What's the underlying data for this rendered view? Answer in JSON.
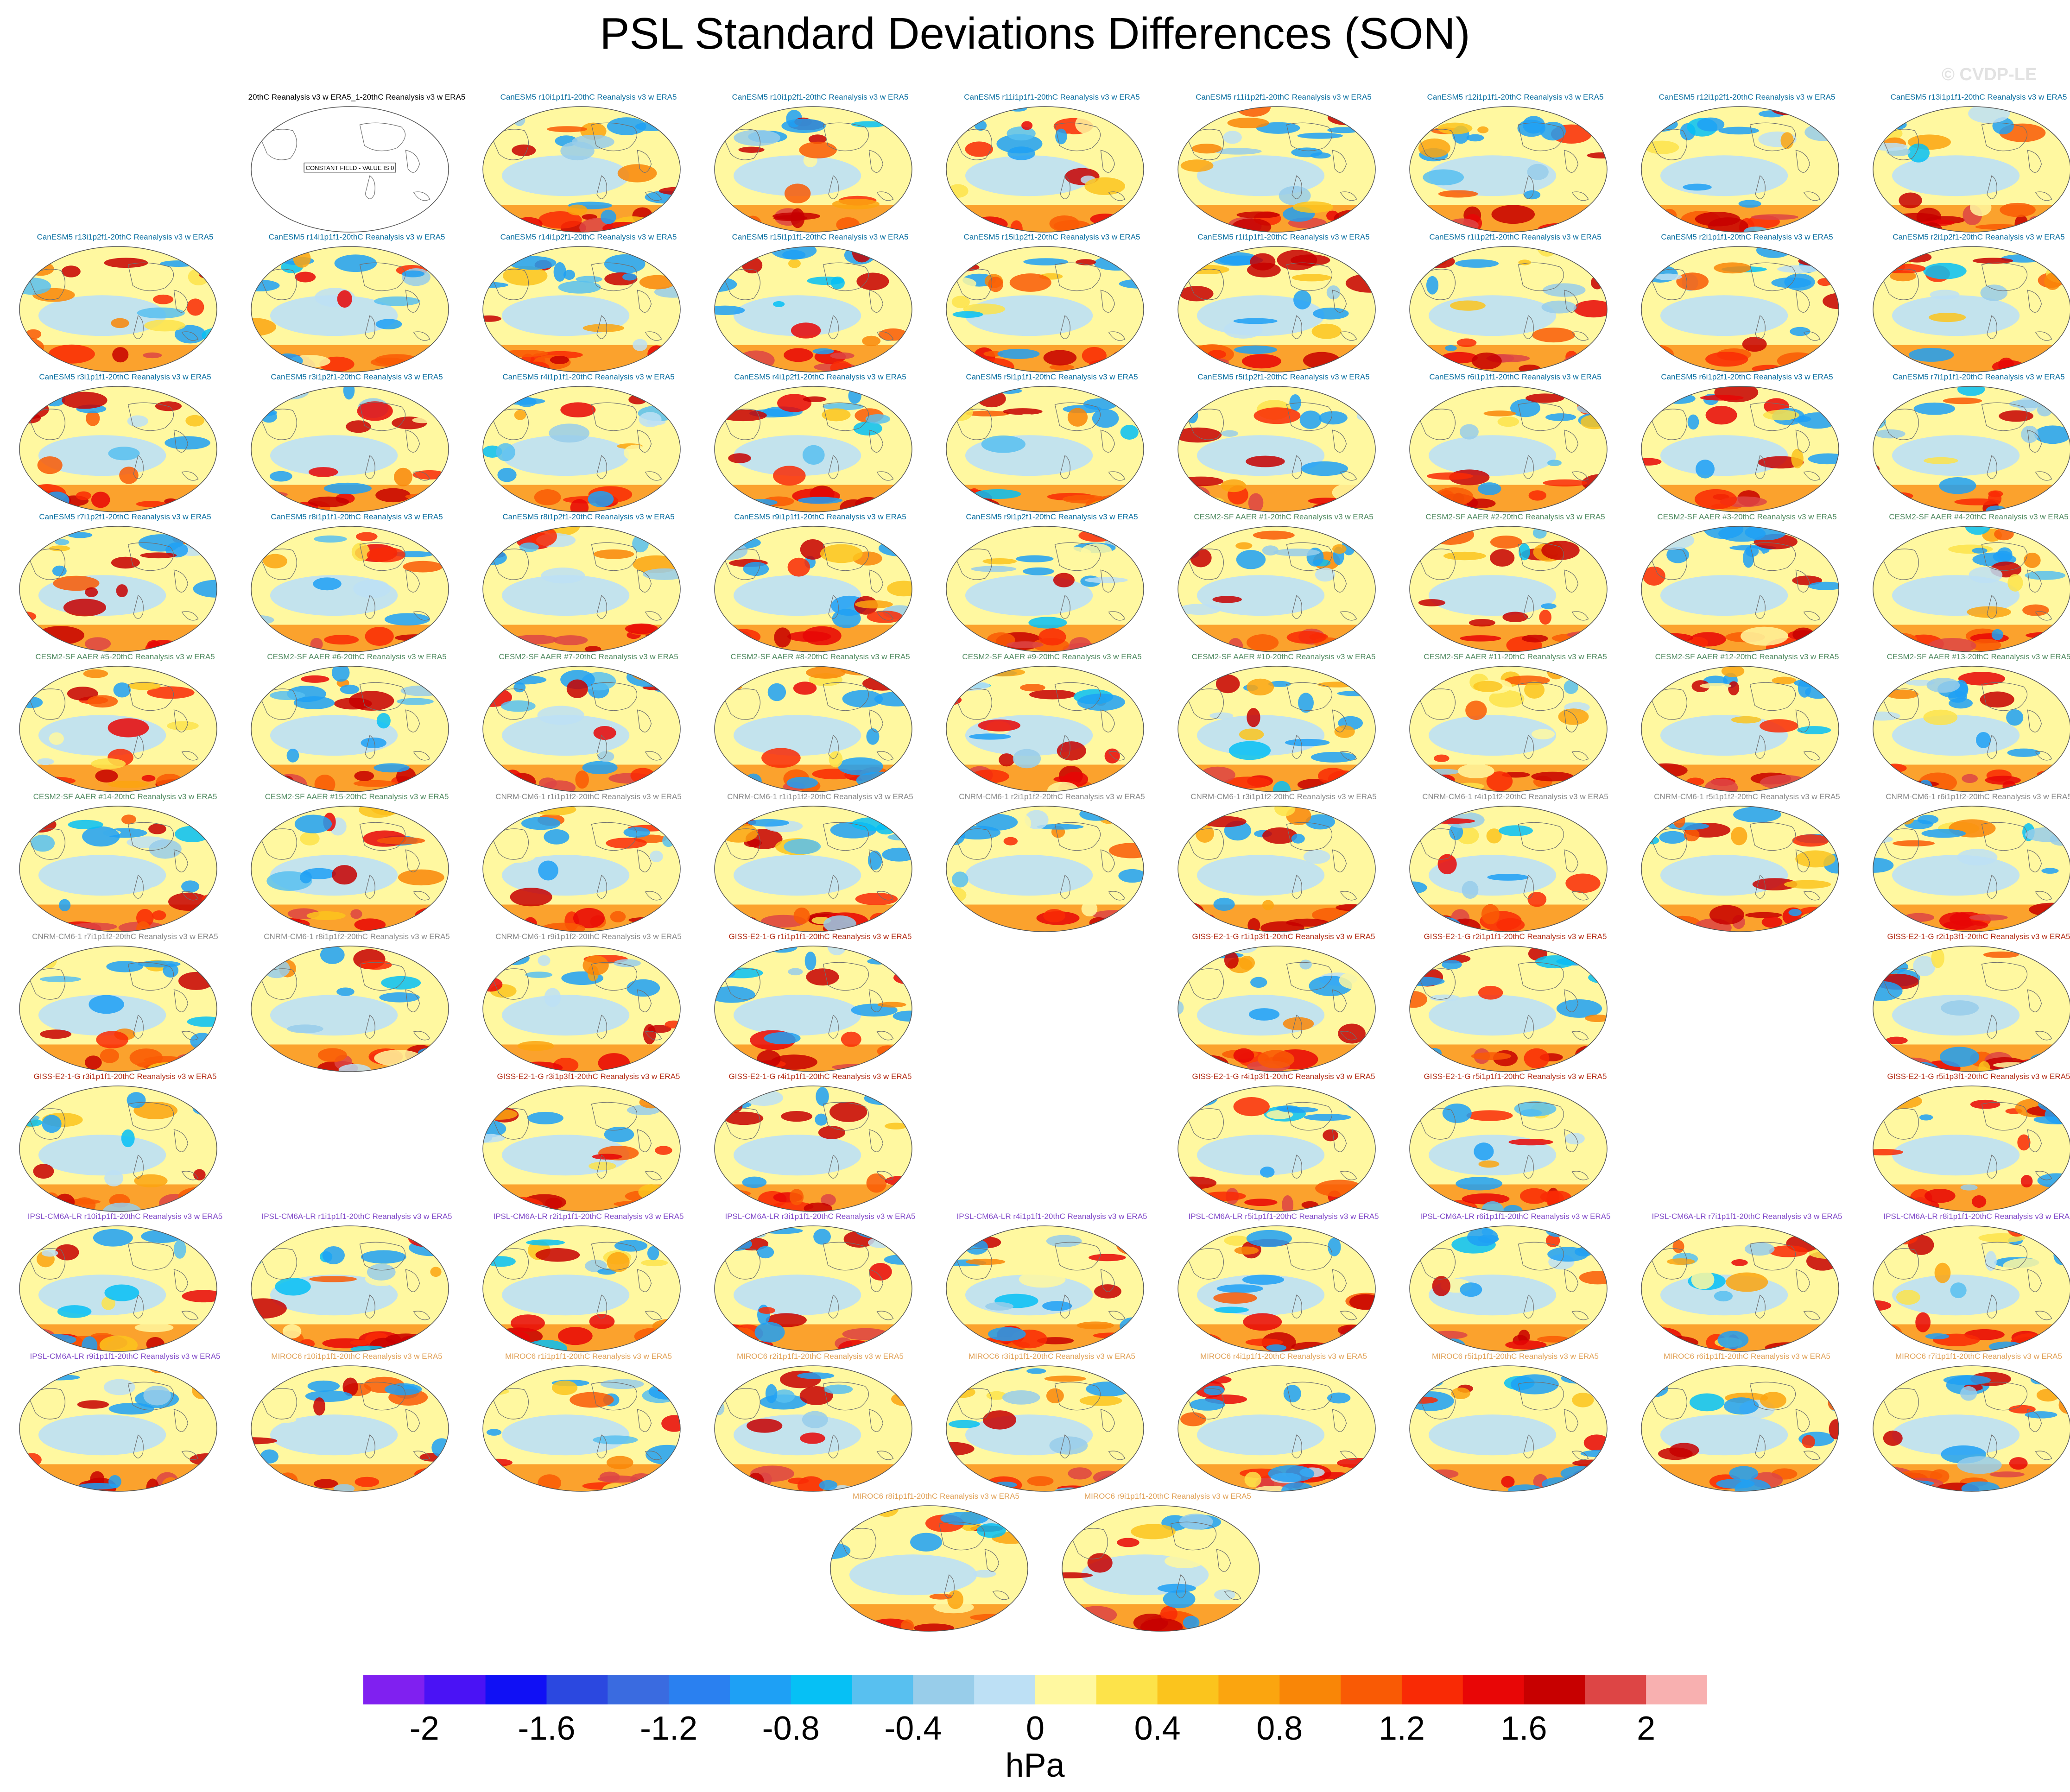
{
  "title": "PSL Standard Deviations Differences (SON)",
  "watermark": "© CVDP-LE",
  "units": "hPa",
  "colors": {
    "CanESM5": "#0a6fa0",
    "CESM2-SF AAER": "#508a60",
    "CNRM-CM6-1": "#888888",
    "GISS-E2-1-G": "#b22a12",
    "IPSL-CM6A-LR": "#8048c8",
    "MIROC6": "#e0a055",
    "obs": "#000000"
  },
  "chart_data": {
    "type": "heatmap",
    "map_projection": "global robinson",
    "layout": "9 columns x 11 rows",
    "colorbar": {
      "levels": [
        -2.2,
        -2,
        -1.8,
        -1.6,
        -1.4,
        -1.2,
        -1,
        -0.8,
        -0.6,
        -0.4,
        -0.2,
        0,
        0.2,
        0.4,
        0.6,
        0.8,
        1,
        1.2,
        1.4,
        1.6,
        1.8,
        2,
        2.2
      ],
      "colors": [
        "#8020f0",
        "#4a12f5",
        "#1010f5",
        "#2b48e0",
        "#3a6be0",
        "#2a80f0",
        "#1ea0f5",
        "#06c0f5",
        "#58c0f0",
        "#98cdea",
        "#bde0f5",
        "#fff8a0",
        "#fde34a",
        "#fbc41d",
        "#fba50f",
        "#f98607",
        "#f95a05",
        "#f92a05",
        "#e80606",
        "#c70000",
        "#dd4545",
        "#f8b0b0"
      ],
      "tick_labels": [
        "-2",
        "-1.6",
        "-1.2",
        "-0.8",
        "-0.4",
        "0",
        "0.4",
        "0.8",
        "1.2",
        "1.6",
        "2"
      ],
      "units": "hPa"
    },
    "panels": [
      {
        "title": "20thC Reanalysis v3 w ERA5_1-20thC Reanalysis v3 w ERA5",
        "model": "obs",
        "row": 0,
        "col": 1,
        "constant_field": true,
        "annotation": "CONSTANT FIELD - VALUE IS 0"
      },
      {
        "title": "CanESM5 r10i1p1f1-20thC Reanalysis v3 w ERA5",
        "model": "CanESM5",
        "row": 0,
        "col": 2
      },
      {
        "title": "CanESM5 r10i1p2f1-20thC Reanalysis v3 w ERA5",
        "model": "CanESM5",
        "row": 0,
        "col": 3
      },
      {
        "title": "CanESM5 r11i1p1f1-20thC Reanalysis v3 w ERA5",
        "model": "CanESM5",
        "row": 0,
        "col": 4
      },
      {
        "title": "CanESM5 r11i1p2f1-20thC Reanalysis v3 w ERA5",
        "model": "CanESM5",
        "row": 0,
        "col": 5
      },
      {
        "title": "CanESM5 r12i1p1f1-20thC Reanalysis v3 w ERA5",
        "model": "CanESM5",
        "row": 0,
        "col": 6
      },
      {
        "title": "CanESM5 r12i1p2f1-20thC Reanalysis v3 w ERA5",
        "model": "CanESM5",
        "row": 0,
        "col": 7
      },
      {
        "title": "CanESM5 r13i1p1f1-20thC Reanalysis v3 w ERA5",
        "model": "CanESM5",
        "row": 0,
        "col": 8
      },
      {
        "title": "CanESM5 r13i1p2f1-20thC Reanalysis v3 w ERA5",
        "model": "CanESM5",
        "row": 1,
        "col": 0
      },
      {
        "title": "CanESM5 r14i1p1f1-20thC Reanalysis v3 w ERA5",
        "model": "CanESM5",
        "row": 1,
        "col": 1
      },
      {
        "title": "CanESM5 r14i1p2f1-20thC Reanalysis v3 w ERA5",
        "model": "CanESM5",
        "row": 1,
        "col": 2
      },
      {
        "title": "CanESM5 r15i1p1f1-20thC Reanalysis v3 w ERA5",
        "model": "CanESM5",
        "row": 1,
        "col": 3
      },
      {
        "title": "CanESM5 r15i1p2f1-20thC Reanalysis v3 w ERA5",
        "model": "CanESM5",
        "row": 1,
        "col": 4
      },
      {
        "title": "CanESM5 r1i1p1f1-20thC Reanalysis v3 w ERA5",
        "model": "CanESM5",
        "row": 1,
        "col": 5
      },
      {
        "title": "CanESM5 r1i1p2f1-20thC Reanalysis v3 w ERA5",
        "model": "CanESM5",
        "row": 1,
        "col": 6
      },
      {
        "title": "CanESM5 r2i1p1f1-20thC Reanalysis v3 w ERA5",
        "model": "CanESM5",
        "row": 1,
        "col": 7
      },
      {
        "title": "CanESM5 r2i1p2f1-20thC Reanalysis v3 w ERA5",
        "model": "CanESM5",
        "row": 1,
        "col": 8
      },
      {
        "title": "CanESM5 r3i1p1f1-20thC Reanalysis v3 w ERA5",
        "model": "CanESM5",
        "row": 2,
        "col": 0
      },
      {
        "title": "CanESM5 r3i1p2f1-20thC Reanalysis v3 w ERA5",
        "model": "CanESM5",
        "row": 2,
        "col": 1
      },
      {
        "title": "CanESM5 r4i1p1f1-20thC Reanalysis v3 w ERA5",
        "model": "CanESM5",
        "row": 2,
        "col": 2
      },
      {
        "title": "CanESM5 r4i1p2f1-20thC Reanalysis v3 w ERA5",
        "model": "CanESM5",
        "row": 2,
        "col": 3
      },
      {
        "title": "CanESM5 r5i1p1f1-20thC Reanalysis v3 w ERA5",
        "model": "CanESM5",
        "row": 2,
        "col": 4
      },
      {
        "title": "CanESM5 r5i1p2f1-20thC Reanalysis v3 w ERA5",
        "model": "CanESM5",
        "row": 2,
        "col": 5
      },
      {
        "title": "CanESM5 r6i1p1f1-20thC Reanalysis v3 w ERA5",
        "model": "CanESM5",
        "row": 2,
        "col": 6
      },
      {
        "title": "CanESM5 r6i1p2f1-20thC Reanalysis v3 w ERA5",
        "model": "CanESM5",
        "row": 2,
        "col": 7
      },
      {
        "title": "CanESM5 r7i1p1f1-20thC Reanalysis v3 w ERA5",
        "model": "CanESM5",
        "row": 2,
        "col": 8
      },
      {
        "title": "CanESM5 r7i1p2f1-20thC Reanalysis v3 w ERA5",
        "model": "CanESM5",
        "row": 3,
        "col": 0
      },
      {
        "title": "CanESM5 r8i1p1f1-20thC Reanalysis v3 w ERA5",
        "model": "CanESM5",
        "row": 3,
        "col": 1
      },
      {
        "title": "CanESM5 r8i1p2f1-20thC Reanalysis v3 w ERA5",
        "model": "CanESM5",
        "row": 3,
        "col": 2
      },
      {
        "title": "CanESM5 r9i1p1f1-20thC Reanalysis v3 w ERA5",
        "model": "CanESM5",
        "row": 3,
        "col": 3
      },
      {
        "title": "CanESM5 r9i1p2f1-20thC Reanalysis v3 w ERA5",
        "model": "CanESM5",
        "row": 3,
        "col": 4
      },
      {
        "title": "CESM2-SF AAER #1-20thC Reanalysis v3 w ERA5",
        "model": "CESM2-SF AAER",
        "row": 3,
        "col": 5
      },
      {
        "title": "CESM2-SF AAER #2-20thC Reanalysis v3 w ERA5",
        "model": "CESM2-SF AAER",
        "row": 3,
        "col": 6
      },
      {
        "title": "CESM2-SF AAER #3-20thC Reanalysis v3 w ERA5",
        "model": "CESM2-SF AAER",
        "row": 3,
        "col": 7
      },
      {
        "title": "CESM2-SF AAER #4-20thC Reanalysis v3 w ERA5",
        "model": "CESM2-SF AAER",
        "row": 3,
        "col": 8
      },
      {
        "title": "CESM2-SF AAER #5-20thC Reanalysis v3 w ERA5",
        "model": "CESM2-SF AAER",
        "row": 4,
        "col": 0
      },
      {
        "title": "CESM2-SF AAER #6-20thC Reanalysis v3 w ERA5",
        "model": "CESM2-SF AAER",
        "row": 4,
        "col": 1
      },
      {
        "title": "CESM2-SF AAER #7-20thC Reanalysis v3 w ERA5",
        "model": "CESM2-SF AAER",
        "row": 4,
        "col": 2
      },
      {
        "title": "CESM2-SF AAER #8-20thC Reanalysis v3 w ERA5",
        "model": "CESM2-SF AAER",
        "row": 4,
        "col": 3
      },
      {
        "title": "CESM2-SF AAER #9-20thC Reanalysis v3 w ERA5",
        "model": "CESM2-SF AAER",
        "row": 4,
        "col": 4
      },
      {
        "title": "CESM2-SF AAER #10-20thC Reanalysis v3 w ERA5",
        "model": "CESM2-SF AAER",
        "row": 4,
        "col": 5
      },
      {
        "title": "CESM2-SF AAER #11-20thC Reanalysis v3 w ERA5",
        "model": "CESM2-SF AAER",
        "row": 4,
        "col": 6
      },
      {
        "title": "CESM2-SF AAER #12-20thC Reanalysis v3 w ERA5",
        "model": "CESM2-SF AAER",
        "row": 4,
        "col": 7
      },
      {
        "title": "CESM2-SF AAER #13-20thC Reanalysis v3 w ERA5",
        "model": "CESM2-SF AAER",
        "row": 4,
        "col": 8
      },
      {
        "title": "CESM2-SF AAER #14-20thC Reanalysis v3 w ERA5",
        "model": "CESM2-SF AAER",
        "row": 5,
        "col": 0
      },
      {
        "title": "CESM2-SF AAER #15-20thC Reanalysis v3 w ERA5",
        "model": "CESM2-SF AAER",
        "row": 5,
        "col": 1
      },
      {
        "title": "CNRM-CM6-1 r1i1p1f2-20thC Reanalysis v3 w ERA5",
        "model": "CNRM-CM6-1",
        "row": 5,
        "col": 2
      },
      {
        "title": "CNRM-CM6-1 r1i1p1f2-20thC Reanalysis v3 w ERA5",
        "model": "CNRM-CM6-1",
        "row": 5,
        "col": 3
      },
      {
        "title": "CNRM-CM6-1 r2i1p1f2-20thC Reanalysis v3 w ERA5",
        "model": "CNRM-CM6-1",
        "row": 5,
        "col": 4
      },
      {
        "title": "CNRM-CM6-1 r3i1p1f2-20thC Reanalysis v3 w ERA5",
        "model": "CNRM-CM6-1",
        "row": 5,
        "col": 5
      },
      {
        "title": "CNRM-CM6-1 r4i1p1f2-20thC Reanalysis v3 w ERA5",
        "model": "CNRM-CM6-1",
        "row": 5,
        "col": 6
      },
      {
        "title": "CNRM-CM6-1 r5i1p1f2-20thC Reanalysis v3 w ERA5",
        "model": "CNRM-CM6-1",
        "row": 5,
        "col": 7
      },
      {
        "title": "CNRM-CM6-1 r6i1p1f2-20thC Reanalysis v3 w ERA5",
        "model": "CNRM-CM6-1",
        "row": 5,
        "col": 8
      },
      {
        "title": "CNRM-CM6-1 r7i1p1f2-20thC Reanalysis v3 w ERA5",
        "model": "CNRM-CM6-1",
        "row": 6,
        "col": 0
      },
      {
        "title": "CNRM-CM6-1 r8i1p1f2-20thC Reanalysis v3 w ERA5",
        "model": "CNRM-CM6-1",
        "row": 6,
        "col": 1
      },
      {
        "title": "CNRM-CM6-1 r9i1p1f2-20thC Reanalysis v3 w ERA5",
        "model": "CNRM-CM6-1",
        "row": 6,
        "col": 2
      },
      {
        "title": "GISS-E2-1-G r1i1p1f1-20thC Reanalysis v3 w ERA5",
        "model": "GISS-E2-1-G",
        "row": 6,
        "col": 3
      },
      {
        "title": "GISS-E2-1-G r1i1p3f1-20thC Reanalysis v3 w ERA5",
        "model": "GISS-E2-1-G",
        "row": 6,
        "col": 5
      },
      {
        "title": "GISS-E2-1-G r2i1p1f1-20thC Reanalysis v3 w ERA5",
        "model": "GISS-E2-1-G",
        "row": 6,
        "col": 6
      },
      {
        "title": "GISS-E2-1-G r2i1p3f1-20thC Reanalysis v3 w ERA5",
        "model": "GISS-E2-1-G",
        "row": 6,
        "col": 8
      },
      {
        "title": "GISS-E2-1-G r3i1p1f1-20thC Reanalysis v3 w ERA5",
        "model": "GISS-E2-1-G",
        "row": 7,
        "col": 0
      },
      {
        "title": "GISS-E2-1-G r3i1p3f1-20thC Reanalysis v3 w ERA5",
        "model": "GISS-E2-1-G",
        "row": 7,
        "col": 2
      },
      {
        "title": "GISS-E2-1-G r4i1p1f1-20thC Reanalysis v3 w ERA5",
        "model": "GISS-E2-1-G",
        "row": 7,
        "col": 3
      },
      {
        "title": "GISS-E2-1-G r4i1p3f1-20thC Reanalysis v3 w ERA5",
        "model": "GISS-E2-1-G",
        "row": 7,
        "col": 5
      },
      {
        "title": "GISS-E2-1-G r5i1p1f1-20thC Reanalysis v3 w ERA5",
        "model": "GISS-E2-1-G",
        "row": 7,
        "col": 6
      },
      {
        "title": "GISS-E2-1-G r5i1p3f1-20thC Reanalysis v3 w ERA5",
        "model": "GISS-E2-1-G",
        "row": 7,
        "col": 8
      },
      {
        "title": "IPSL-CM6A-LR r10i1p1f1-20thC Reanalysis v3 w ERA5",
        "model": "IPSL-CM6A-LR",
        "row": 8,
        "col": 0
      },
      {
        "title": "IPSL-CM6A-LR r1i1p1f1-20thC Reanalysis v3 w ERA5",
        "model": "IPSL-CM6A-LR",
        "row": 8,
        "col": 1
      },
      {
        "title": "IPSL-CM6A-LR r2i1p1f1-20thC Reanalysis v3 w ERA5",
        "model": "IPSL-CM6A-LR",
        "row": 8,
        "col": 2
      },
      {
        "title": "IPSL-CM6A-LR r3i1p1f1-20thC Reanalysis v3 w ERA5",
        "model": "IPSL-CM6A-LR",
        "row": 8,
        "col": 3
      },
      {
        "title": "IPSL-CM6A-LR r4i1p1f1-20thC Reanalysis v3 w ERA5",
        "model": "IPSL-CM6A-LR",
        "row": 8,
        "col": 4
      },
      {
        "title": "IPSL-CM6A-LR r5i1p1f1-20thC Reanalysis v3 w ERA5",
        "model": "IPSL-CM6A-LR",
        "row": 8,
        "col": 5
      },
      {
        "title": "IPSL-CM6A-LR r6i1p1f1-20thC Reanalysis v3 w ERA5",
        "model": "IPSL-CM6A-LR",
        "row": 8,
        "col": 6
      },
      {
        "title": "IPSL-CM6A-LR r7i1p1f1-20thC Reanalysis v3 w ERA5",
        "model": "IPSL-CM6A-LR",
        "row": 8,
        "col": 7
      },
      {
        "title": "IPSL-CM6A-LR r8i1p1f1-20thC Reanalysis v3 w ERA5",
        "model": "IPSL-CM6A-LR",
        "row": 8,
        "col": 8
      },
      {
        "title": "IPSL-CM6A-LR r9i1p1f1-20thC Reanalysis v3 w ERA5",
        "model": "IPSL-CM6A-LR",
        "row": 9,
        "col": 0
      },
      {
        "title": "MIROC6 r10i1p1f1-20thC Reanalysis v3 w ERA5",
        "model": "MIROC6",
        "row": 9,
        "col": 1
      },
      {
        "title": "MIROC6 r1i1p1f1-20thC Reanalysis v3 w ERA5",
        "model": "MIROC6",
        "row": 9,
        "col": 2
      },
      {
        "title": "MIROC6 r2i1p1f1-20thC Reanalysis v3 w ERA5",
        "model": "MIROC6",
        "row": 9,
        "col": 3
      },
      {
        "title": "MIROC6 r3i1p1f1-20thC Reanalysis v3 w ERA5",
        "model": "MIROC6",
        "row": 9,
        "col": 4
      },
      {
        "title": "MIROC6 r4i1p1f1-20thC Reanalysis v3 w ERA5",
        "model": "MIROC6",
        "row": 9,
        "col": 5
      },
      {
        "title": "MIROC6 r5i1p1f1-20thC Reanalysis v3 w ERA5",
        "model": "MIROC6",
        "row": 9,
        "col": 6
      },
      {
        "title": "MIROC6 r6i1p1f1-20thC Reanalysis v3 w ERA5",
        "model": "MIROC6",
        "row": 9,
        "col": 7
      },
      {
        "title": "MIROC6 r7i1p1f1-20thC Reanalysis v3 w ERA5",
        "model": "MIROC6",
        "row": 9,
        "col": 8
      },
      {
        "title": "MIROC6 r8i1p1f1-20thC Reanalysis v3 w ERA5",
        "model": "MIROC6",
        "row": 10,
        "col": 3.5
      },
      {
        "title": "MIROC6 r9i1p1f1-20thC Reanalysis v3 w ERA5",
        "model": "MIROC6",
        "row": 10,
        "col": 4.5
      }
    ]
  }
}
